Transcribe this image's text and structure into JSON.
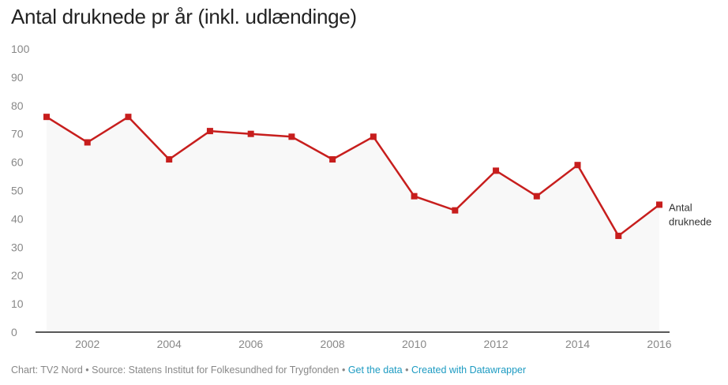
{
  "chart_data": {
    "type": "line",
    "title": "Antal druknede pr år (inkl. udlændinge)",
    "xlabel": "",
    "ylabel": "",
    "x": [
      2001,
      2002,
      2003,
      2004,
      2005,
      2006,
      2007,
      2008,
      2009,
      2010,
      2011,
      2012,
      2013,
      2014,
      2015,
      2016
    ],
    "series": [
      {
        "name": "Antal druknede",
        "label_lines": [
          "Antal",
          "druknede"
        ],
        "color": "#c71e1d",
        "values": [
          76,
          67,
          76,
          61,
          71,
          70,
          69,
          61,
          69,
          48,
          43,
          57,
          48,
          59,
          34,
          45
        ]
      }
    ],
    "ylim": [
      0,
      100
    ],
    "yticks": [
      0,
      10,
      20,
      30,
      40,
      50,
      60,
      70,
      80,
      90,
      100
    ],
    "xticks": [
      2002,
      2004,
      2006,
      2008,
      2010,
      2012,
      2014,
      2016
    ],
    "grid": false,
    "legend": "inline-end"
  },
  "footer": {
    "chart_text": "Chart: TV2 Nord",
    "sep": " • ",
    "source_text": "Source: Statens Institut for Folkesundhed for Trygfonden",
    "get_data": "Get the data",
    "created_with": "Created with Datawrapper"
  },
  "colors": {
    "area": "#f8f8f8",
    "line": "#c71e1d",
    "link": "#1d9bc2"
  }
}
